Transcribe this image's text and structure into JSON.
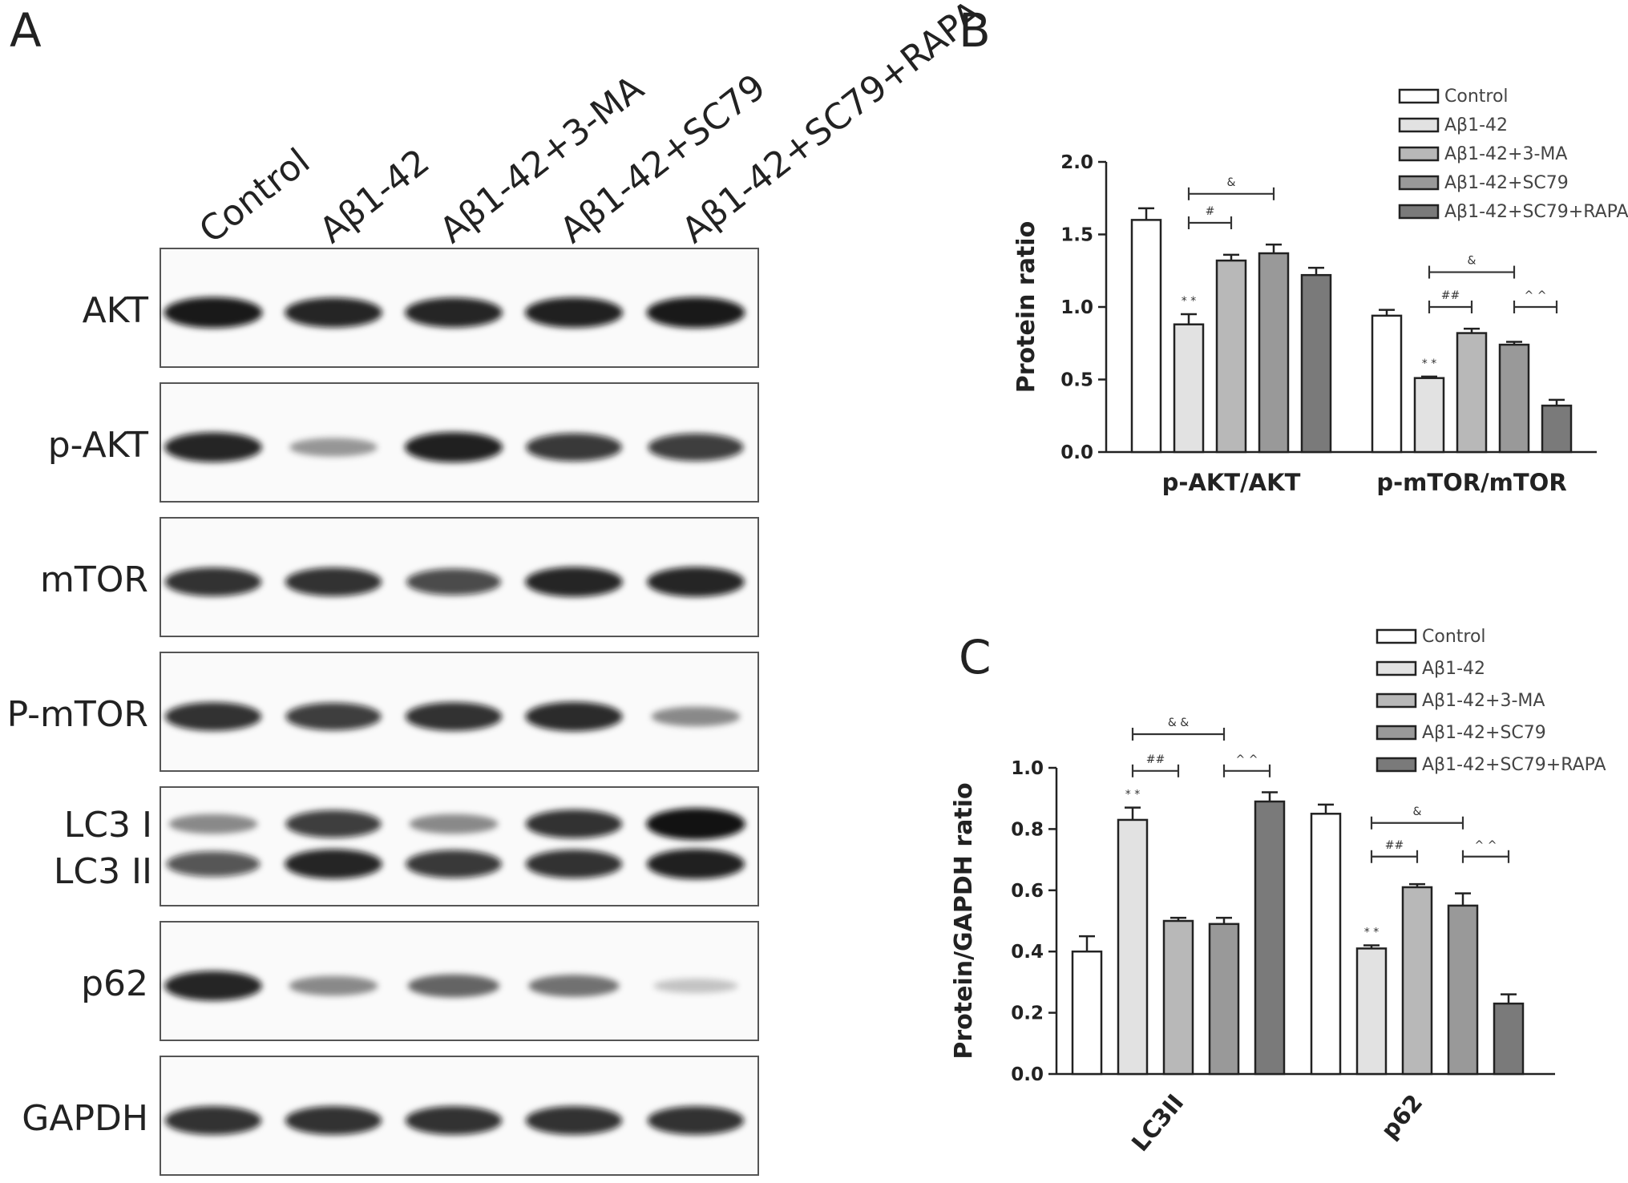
{
  "panels": {
    "a": "A",
    "b": "B",
    "c": "C"
  },
  "blot": {
    "lane_labels": [
      "Control",
      "Aβ1-42",
      "Aβ1-42+3-MA",
      "Aβ1-42+SC79",
      "Aβ1-42+SC79+RAPA"
    ],
    "rows": [
      {
        "label": "AKT",
        "bands": [
          0.95,
          0.9,
          0.9,
          0.92,
          0.95
        ]
      },
      {
        "label": "p-AKT",
        "bands": [
          0.9,
          0.4,
          0.92,
          0.82,
          0.8
        ]
      },
      {
        "label": "mTOR",
        "bands": [
          0.85,
          0.85,
          0.75,
          0.9,
          0.9
        ]
      },
      {
        "label": "P-mTOR",
        "bands": [
          0.85,
          0.8,
          0.85,
          0.88,
          0.45
        ]
      },
      {
        "label_top": "LC3 I",
        "label_bottom": "LC3 II",
        "bands_top": [
          0.45,
          0.8,
          0.45,
          0.85,
          0.98
        ],
        "bands_bottom": [
          0.7,
          0.9,
          0.82,
          0.85,
          0.92
        ]
      },
      {
        "label": "p62",
        "bands": [
          0.9,
          0.45,
          0.6,
          0.55,
          0.22
        ]
      },
      {
        "label": "GAPDH",
        "bands": [
          0.85,
          0.85,
          0.85,
          0.85,
          0.85
        ]
      }
    ]
  },
  "chart_data": [
    {
      "type": "bar",
      "panel": "B",
      "categories": [
        "p-AKT/AKT",
        "p-mTOR/mTOR"
      ],
      "series": [
        {
          "name": "Control",
          "values": [
            1.6,
            0.94
          ],
          "errors": [
            0.08,
            0.04
          ],
          "color": "#ffffff"
        },
        {
          "name": "Aβ1-42",
          "values": [
            0.88,
            0.51
          ],
          "errors": [
            0.07,
            0.01
          ],
          "color": "#e2e2e2"
        },
        {
          "name": "Aβ1-42+3-MA",
          "values": [
            1.32,
            0.82
          ],
          "errors": [
            0.04,
            0.03
          ],
          "color": "#b8b8b8"
        },
        {
          "name": "Aβ1-42+SC79",
          "values": [
            1.37,
            0.74
          ],
          "errors": [
            0.06,
            0.02
          ],
          "color": "#999999"
        },
        {
          "name": "Aβ1-42+SC79+RAPA",
          "values": [
            1.22,
            0.32
          ],
          "errors": [
            0.05,
            0.04
          ],
          "color": "#7a7a7a"
        }
      ],
      "ylabel": "Protein ratio",
      "ylim": [
        0,
        2.0
      ],
      "yticks": [
        "0.0",
        "0.5",
        "1.0",
        "1.5",
        "2.0"
      ],
      "annotations": [
        {
          "text": "* *",
          "cat": 0,
          "bar": 1
        },
        {
          "text": "#",
          "cat": 0,
          "from": 1,
          "to": 2,
          "level": 1.58
        },
        {
          "text": "&",
          "cat": 0,
          "from": 1,
          "to": 3,
          "level": 1.78
        },
        {
          "text": "* *",
          "cat": 1,
          "bar": 1
        },
        {
          "text": "##",
          "cat": 1,
          "from": 1,
          "to": 2,
          "level": 1.0
        },
        {
          "text": "&",
          "cat": 1,
          "from": 1,
          "to": 3,
          "level": 1.24
        },
        {
          "text": "^ ^",
          "cat": 1,
          "from": 3,
          "to": 4,
          "level": 1.0
        }
      ],
      "legend_position": "top-right"
    },
    {
      "type": "bar",
      "panel": "C",
      "categories": [
        "LC3II",
        "p62"
      ],
      "series": [
        {
          "name": "Control",
          "values": [
            0.4,
            0.85
          ],
          "errors": [
            0.05,
            0.03
          ],
          "color": "#ffffff"
        },
        {
          "name": "Aβ1-42",
          "values": [
            0.83,
            0.41
          ],
          "errors": [
            0.04,
            0.01
          ],
          "color": "#e2e2e2"
        },
        {
          "name": "Aβ1-42+3-MA",
          "values": [
            0.5,
            0.61
          ],
          "errors": [
            0.01,
            0.01
          ],
          "color": "#b8b8b8"
        },
        {
          "name": "Aβ1-42+SC79",
          "values": [
            0.49,
            0.55
          ],
          "errors": [
            0.02,
            0.04
          ],
          "color": "#999999"
        },
        {
          "name": "Aβ1-42+SC79+RAPA",
          "values": [
            0.89,
            0.23
          ],
          "errors": [
            0.03,
            0.03
          ],
          "color": "#7a7a7a"
        }
      ],
      "ylabel": "Protein/GAPDH ratio",
      "ylim": [
        0,
        1.0
      ],
      "yticks": [
        "0.0",
        "0.2",
        "0.4",
        "0.6",
        "0.8",
        "1.0"
      ],
      "annotations": [
        {
          "text": "* *",
          "cat": 0,
          "bar": 1
        },
        {
          "text": "##",
          "cat": 0,
          "from": 1,
          "to": 2,
          "level": 0.99
        },
        {
          "text": "& &",
          "cat": 0,
          "from": 1,
          "to": 3,
          "level": 1.11
        },
        {
          "text": "^ ^",
          "cat": 0,
          "from": 3,
          "to": 4,
          "level": 0.99
        },
        {
          "text": "* *",
          "cat": 1,
          "bar": 1
        },
        {
          "text": "##",
          "cat": 1,
          "from": 1,
          "to": 2,
          "level": 0.71
        },
        {
          "text": "&",
          "cat": 1,
          "from": 1,
          "to": 3,
          "level": 0.82
        },
        {
          "text": "^ ^",
          "cat": 1,
          "from": 3,
          "to": 4,
          "level": 0.71
        }
      ],
      "rotated_category_labels": true,
      "legend_position": "top-right"
    }
  ]
}
